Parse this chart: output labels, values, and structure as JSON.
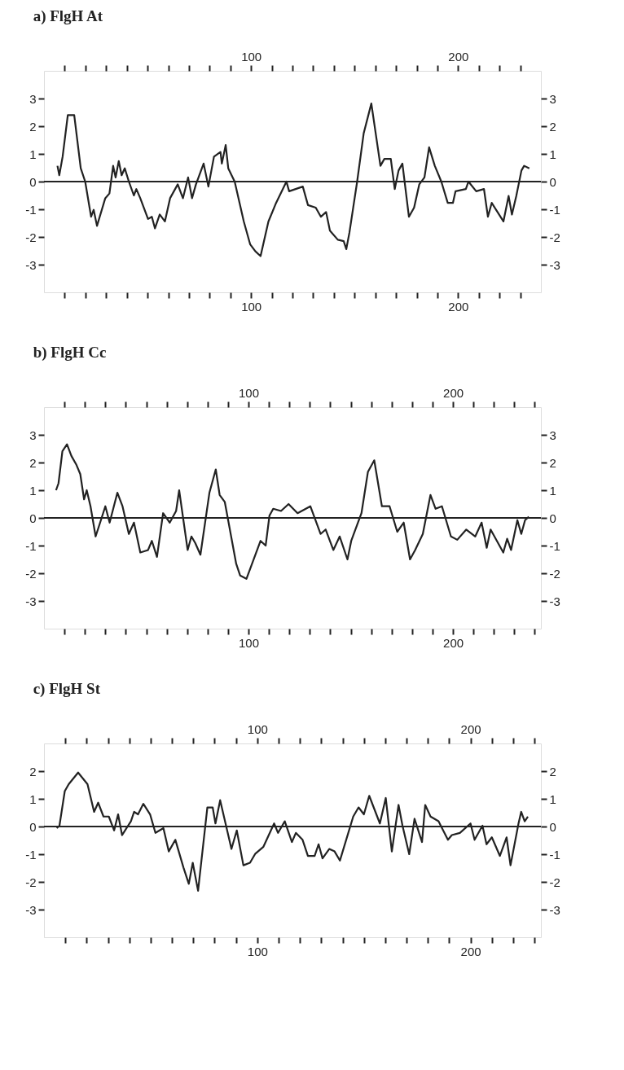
{
  "chart_data": [
    {
      "type": "line",
      "title": "a) FlgH At",
      "xlim": [
        0,
        240
      ],
      "x2lim": [
        0,
        240
      ],
      "ylim": [
        -4,
        4
      ],
      "y2lim": [
        -4,
        4
      ],
      "xticks": [
        {
          "value": 10,
          "label": null
        },
        {
          "value": 20,
          "label": null
        },
        {
          "value": 30,
          "label": null
        },
        {
          "value": 40,
          "label": null
        },
        {
          "value": 50,
          "label": null
        },
        {
          "value": 60,
          "label": null
        },
        {
          "value": 70,
          "label": null
        },
        {
          "value": 80,
          "label": null
        },
        {
          "value": 90,
          "label": null
        },
        100,
        {
          "value": 110,
          "label": null
        },
        {
          "value": 120,
          "label": null
        },
        {
          "value": 130,
          "label": null
        },
        {
          "value": 140,
          "label": null
        },
        {
          "value": 150,
          "label": null
        },
        {
          "value": 160,
          "label": null
        },
        {
          "value": 170,
          "label": null
        },
        {
          "value": 180,
          "label": null
        },
        {
          "value": 190,
          "label": null
        },
        200,
        {
          "value": 210,
          "label": null
        },
        {
          "value": 220,
          "label": null
        },
        {
          "value": 230,
          "label": null
        }
      ],
      "x2ticks": [
        {
          "value": 10,
          "label": null
        },
        {
          "value": 20,
          "label": null
        },
        {
          "value": 30,
          "label": null
        },
        {
          "value": 40,
          "label": null
        },
        {
          "value": 50,
          "label": null
        },
        {
          "value": 60,
          "label": null
        },
        {
          "value": 70,
          "label": null
        },
        {
          "value": 80,
          "label": null
        },
        {
          "value": 90,
          "label": null
        },
        100,
        {
          "value": 110,
          "label": null
        },
        {
          "value": 120,
          "label": null
        },
        {
          "value": 130,
          "label": null
        },
        {
          "value": 140,
          "label": null
        },
        {
          "value": 150,
          "label": null
        },
        {
          "value": 160,
          "label": null
        },
        {
          "value": 170,
          "label": null
        },
        {
          "value": 180,
          "label": null
        },
        {
          "value": 190,
          "label": null
        },
        200,
        {
          "value": 210,
          "label": null
        },
        {
          "value": 220,
          "label": null
        },
        {
          "value": 230,
          "label": null
        }
      ],
      "yticks": [
        -3,
        -2,
        -1,
        0,
        1,
        2,
        3
      ],
      "y2ticks": [
        -3,
        -2,
        -1,
        0,
        1,
        2,
        3
      ],
      "ref_lines": [
        {
          "axis": "y",
          "value": 0
        }
      ],
      "series": [
        {
          "color": "#222222",
          "x": [
            6.5,
            7.4,
            9,
            11.5,
            14.6,
            17.75,
            19.9,
            22.75,
            24,
            25.6,
            29.6,
            31.6,
            33.4,
            34.6,
            36.1,
            37.5,
            39,
            41,
            43.4,
            44.6,
            46.5,
            50.25,
            52.1,
            53.6,
            55.9,
            58.4,
            60.9,
            64.6,
            67.1,
            69.6,
            71.5,
            73.4,
            77.1,
            79.4,
            82.1,
            85.25,
            85.9,
            87.75,
            89,
            92.1,
            96.5,
            99.6,
            102.1,
            104.6,
            108.4,
            112.1,
            117.1,
            118.4,
            125,
            127.5,
            131.25,
            133.75,
            136.25,
            138.1,
            141.9,
            144.75,
            146,
            147.5,
            151.25,
            154.4,
            158.1,
            162.5,
            164.4,
            167.5,
            169.4,
            171.25,
            173.1,
            176.25,
            178.75,
            181.25,
            183.75,
            186,
            188.75,
            191.9,
            195,
            197.5,
            198.75,
            203.75,
            205,
            208.75,
            212.5,
            214.4,
            216.25,
            221.9,
            224.4,
            226,
            228.1,
            230.6,
            231.9,
            234.4
          ],
          "values": [
            0.57,
            0.23,
            0.9,
            2.4,
            2.4,
            0.48,
            0,
            -1.27,
            -1.02,
            -1.6,
            -0.6,
            -0.43,
            0.57,
            0.15,
            0.74,
            0.23,
            0.48,
            0,
            -0.5,
            -0.27,
            -0.6,
            -1.35,
            -1.27,
            -1.69,
            -1.19,
            -1.44,
            -0.6,
            -0.1,
            -0.6,
            0.15,
            -0.6,
            -0.1,
            0.65,
            -0.18,
            0.9,
            1.07,
            0.65,
            1.32,
            0.48,
            0,
            -1.44,
            -2.27,
            -2.52,
            -2.69,
            -1.44,
            -0.77,
            0,
            -0.35,
            -0.18,
            -0.85,
            -0.94,
            -1.27,
            -1.1,
            -1.77,
            -2.1,
            -2.15,
            -2.44,
            -1.85,
            0,
            1.74,
            2.82,
            0.57,
            0.82,
            0.82,
            -0.27,
            0.4,
            0.65,
            -1.27,
            -0.94,
            -0.1,
            0.15,
            1.24,
            0.57,
            0,
            -0.77,
            -0.77,
            -0.35,
            -0.27,
            0,
            -0.35,
            -0.27,
            -1.27,
            -0.77,
            -1.44,
            -0.52,
            -1.19,
            -0.52,
            0.4,
            0.57,
            0.48
          ]
        }
      ]
    },
    {
      "type": "line",
      "title": "b) FlgH Cc",
      "xlim": [
        0,
        243
      ],
      "x2lim": [
        0,
        243
      ],
      "ylim": [
        -4,
        4
      ],
      "y2lim": [
        -4,
        4
      ],
      "xticks": [
        {
          "value": 10,
          "label": null
        },
        {
          "value": 20,
          "label": null
        },
        {
          "value": 30,
          "label": null
        },
        {
          "value": 40,
          "label": null
        },
        {
          "value": 50,
          "label": null
        },
        {
          "value": 60,
          "label": null
        },
        {
          "value": 70,
          "label": null
        },
        {
          "value": 80,
          "label": null
        },
        {
          "value": 90,
          "label": null
        },
        100,
        {
          "value": 110,
          "label": null
        },
        {
          "value": 120,
          "label": null
        },
        {
          "value": 130,
          "label": null
        },
        {
          "value": 140,
          "label": null
        },
        {
          "value": 150,
          "label": null
        },
        {
          "value": 160,
          "label": null
        },
        {
          "value": 170,
          "label": null
        },
        {
          "value": 180,
          "label": null
        },
        {
          "value": 190,
          "label": null
        },
        200,
        {
          "value": 210,
          "label": null
        },
        {
          "value": 220,
          "label": null
        },
        {
          "value": 230,
          "label": null
        },
        {
          "value": 240,
          "label": null
        }
      ],
      "x2ticks": [
        {
          "value": 10,
          "label": null
        },
        {
          "value": 20,
          "label": null
        },
        {
          "value": 30,
          "label": null
        },
        {
          "value": 40,
          "label": null
        },
        {
          "value": 50,
          "label": null
        },
        {
          "value": 60,
          "label": null
        },
        {
          "value": 70,
          "label": null
        },
        {
          "value": 80,
          "label": null
        },
        {
          "value": 90,
          "label": null
        },
        100,
        {
          "value": 110,
          "label": null
        },
        {
          "value": 120,
          "label": null
        },
        {
          "value": 130,
          "label": null
        },
        {
          "value": 140,
          "label": null
        },
        {
          "value": 150,
          "label": null
        },
        {
          "value": 160,
          "label": null
        },
        {
          "value": 170,
          "label": null
        },
        {
          "value": 180,
          "label": null
        },
        {
          "value": 190,
          "label": null
        },
        200,
        {
          "value": 210,
          "label": null
        },
        {
          "value": 220,
          "label": null
        },
        {
          "value": 230,
          "label": null
        },
        {
          "value": 240,
          "label": null
        }
      ],
      "yticks": [
        -3,
        -2,
        -1,
        0,
        1,
        2,
        3
      ],
      "y2ticks": [
        -3,
        -2,
        -1,
        0,
        1,
        2,
        3
      ],
      "ref_lines": [
        {
          "axis": "y",
          "value": 0
        }
      ],
      "series": [
        {
          "color": "#222222",
          "x": [
            5.9,
            7.1,
            9,
            11.25,
            13.4,
            15.9,
            17.75,
            19.6,
            20.9,
            22.75,
            25.25,
            27.1,
            30,
            32.1,
            35.9,
            38.4,
            41.5,
            44,
            47.1,
            50.9,
            52.75,
            55.25,
            58.25,
            61.5,
            64.6,
            66.1,
            70.25,
            72.1,
            74,
            76.5,
            80.9,
            84,
            85.9,
            88.4,
            94,
            95.9,
            99,
            105.9,
            108.4,
            110.25,
            112.1,
            115.9,
            119.6,
            124,
            130.25,
            135.25,
            137.75,
            141.5,
            144.6,
            148.4,
            150.25,
            155.25,
            158.4,
            161.5,
            165.25,
            169,
            172.75,
            175.9,
            179,
            181.5,
            185.25,
            189,
            191.5,
            194.6,
            199,
            202.1,
            206.5,
            210.9,
            214,
            216.5,
            218.4,
            224.6,
            226.5,
            228.4,
            231.5,
            233.4,
            235.25,
            237.1
          ],
          "values": [
            1.0,
            1.25,
            2.41,
            2.66,
            2.24,
            1.91,
            1.58,
            0.67,
            1.0,
            0.42,
            -0.67,
            -0.25,
            0.42,
            -0.17,
            0.91,
            0.42,
            -0.58,
            -0.17,
            -1.25,
            -1.16,
            -0.83,
            -1.41,
            0.17,
            -0.17,
            0.25,
            1.0,
            -1.16,
            -0.67,
            -0.91,
            -1.33,
            0.91,
            1.75,
            0.83,
            0.58,
            -1.66,
            -2.08,
            -2.2,
            -0.83,
            -1.0,
            0.08,
            0.33,
            0.25,
            0.5,
            0.17,
            0.42,
            -0.58,
            -0.42,
            -1.16,
            -0.67,
            -1.5,
            -0.83,
            0.17,
            1.66,
            2.08,
            0.42,
            0.42,
            -0.5,
            -0.17,
            -1.5,
            -1.16,
            -0.58,
            0.83,
            0.33,
            0.42,
            -0.67,
            -0.79,
            -0.42,
            -0.67,
            -0.17,
            -1.08,
            -0.42,
            -1.25,
            -0.75,
            -1.16,
            -0.08,
            -0.58,
            -0.08,
            0.04
          ]
        }
      ]
    },
    {
      "type": "line",
      "title": "c) FlgH St",
      "xlim": [
        0,
        233
      ],
      "x2lim": [
        0,
        233
      ],
      "ylim": [
        -4,
        3
      ],
      "y2lim": [
        -4,
        3
      ],
      "xticks": [
        {
          "value": 10,
          "label": null
        },
        {
          "value": 20,
          "label": null
        },
        {
          "value": 30,
          "label": null
        },
        {
          "value": 40,
          "label": null
        },
        {
          "value": 50,
          "label": null
        },
        {
          "value": 60,
          "label": null
        },
        {
          "value": 70,
          "label": null
        },
        {
          "value": 80,
          "label": null
        },
        {
          "value": 90,
          "label": null
        },
        100,
        {
          "value": 110,
          "label": null
        },
        {
          "value": 120,
          "label": null
        },
        {
          "value": 130,
          "label": null
        },
        {
          "value": 140,
          "label": null
        },
        {
          "value": 150,
          "label": null
        },
        {
          "value": 160,
          "label": null
        },
        {
          "value": 170,
          "label": null
        },
        {
          "value": 180,
          "label": null
        },
        {
          "value": 190,
          "label": null
        },
        200,
        {
          "value": 210,
          "label": null
        },
        {
          "value": 220,
          "label": null
        },
        {
          "value": 230,
          "label": null
        }
      ],
      "x2ticks": [
        {
          "value": 10,
          "label": null
        },
        {
          "value": 20,
          "label": null
        },
        {
          "value": 30,
          "label": null
        },
        {
          "value": 40,
          "label": null
        },
        {
          "value": 50,
          "label": null
        },
        {
          "value": 60,
          "label": null
        },
        {
          "value": 70,
          "label": null
        },
        {
          "value": 80,
          "label": null
        },
        {
          "value": 90,
          "label": null
        },
        100,
        {
          "value": 110,
          "label": null
        },
        {
          "value": 120,
          "label": null
        },
        {
          "value": 130,
          "label": null
        },
        {
          "value": 140,
          "label": null
        },
        {
          "value": 150,
          "label": null
        },
        {
          "value": 160,
          "label": null
        },
        {
          "value": 170,
          "label": null
        },
        {
          "value": 180,
          "label": null
        },
        {
          "value": 190,
          "label": null
        },
        200,
        {
          "value": 210,
          "label": null
        },
        {
          "value": 220,
          "label": null
        },
        {
          "value": 230,
          "label": null
        }
      ],
      "yticks": [
        -3,
        -2,
        -1,
        0,
        1,
        2
      ],
      "y2ticks": [
        -3,
        -2,
        -1,
        0,
        1,
        2
      ],
      "ref_lines": [
        {
          "axis": "y",
          "value": 0
        }
      ],
      "series": [
        {
          "color": "#222222",
          "x": [
            6,
            7.25,
            9.75,
            11.6,
            16,
            20.4,
            23.5,
            25.4,
            27.9,
            30.4,
            32.9,
            34.75,
            36.6,
            40.75,
            42.25,
            44.1,
            46.6,
            49.75,
            52.25,
            56,
            58.5,
            61.6,
            65.4,
            67.9,
            69.75,
            72.25,
            76.6,
            79.1,
            80.4,
            82.6,
            87.9,
            90.4,
            93.5,
            96.6,
            99.1,
            102.9,
            105.4,
            107.9,
            109.75,
            112.9,
            116.25,
            118.1,
            121.25,
            123.75,
            126.9,
            128.75,
            130.6,
            133.75,
            136.25,
            138.75,
            145,
            147.5,
            150,
            152.5,
            157.5,
            160.25,
            163.1,
            166.25,
            168.1,
            171.25,
            173.75,
            177.25,
            178.75,
            181.25,
            185,
            189.4,
            191.25,
            195,
            200,
            201.9,
            205.6,
            207.5,
            210,
            213.75,
            216.9,
            218.75,
            222.5,
            223.75,
            225.4,
            226.9
          ],
          "values": [
            -0.06,
            0.03,
            1.28,
            1.53,
            1.95,
            1.53,
            0.53,
            0.86,
            0.36,
            0.36,
            -0.14,
            0.44,
            -0.31,
            0.19,
            0.53,
            0.44,
            0.82,
            0.44,
            -0.23,
            -0.06,
            -0.9,
            -0.48,
            -1.48,
            -2.07,
            -1.31,
            -2.32,
            0.69,
            0.69,
            0.11,
            0.95,
            -0.81,
            -0.14,
            -1.4,
            -1.31,
            -0.98,
            -0.73,
            -0.31,
            0.11,
            -0.23,
            0.19,
            -0.56,
            -0.23,
            -0.48,
            -1.06,
            -1.06,
            -0.64,
            -1.15,
            -0.81,
            -0.9,
            -1.23,
            0.36,
            0.69,
            0.44,
            1.11,
            0.11,
            1.03,
            -0.9,
            0.78,
            0.03,
            -1.0,
            0.28,
            -0.56,
            0.78,
            0.36,
            0.19,
            -0.48,
            -0.31,
            -0.23,
            0.11,
            -0.48,
            0.03,
            -0.64,
            -0.39,
            -1.06,
            -0.39,
            -1.4,
            0.11,
            0.53,
            0.19,
            0.36
          ]
        }
      ]
    }
  ]
}
